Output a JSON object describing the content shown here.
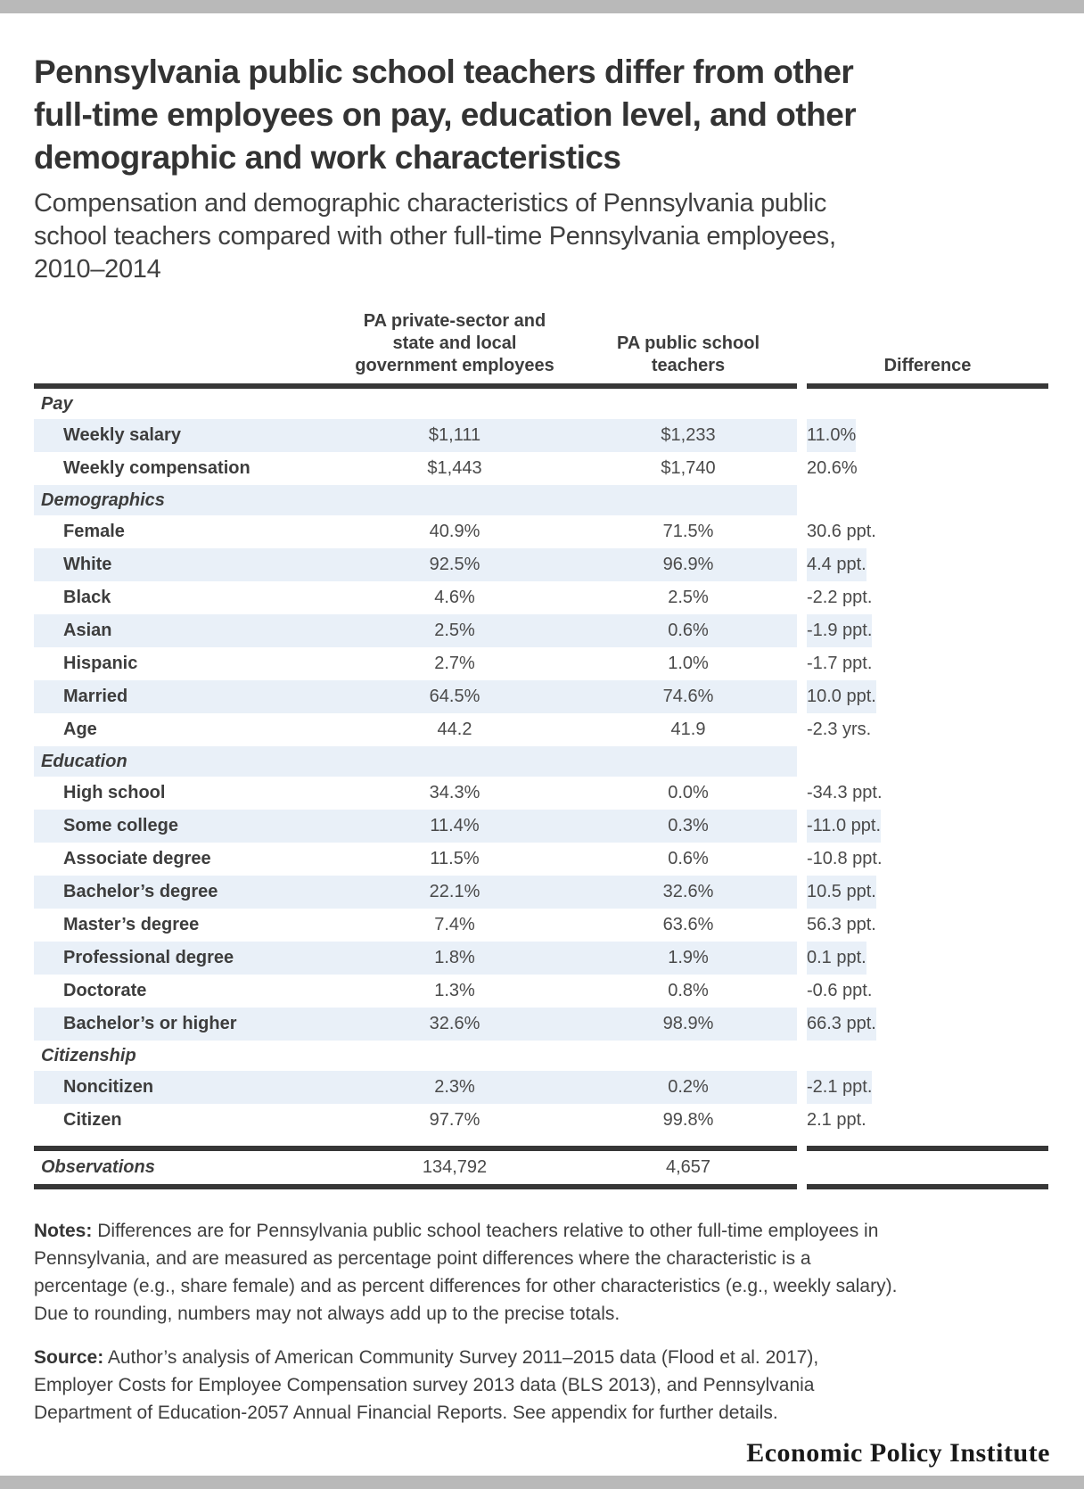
{
  "chart_data": {
    "type": "table",
    "title": "Pennsylvania public school teachers differ from other\nfull-time employees on pay, education level, and other\ndemographic and work characteristics",
    "subtitle": "Compensation and demographic characteristics of Pennsylvania public\nschool teachers compared with other full-time Pennsylvania employees,\n2010–2014",
    "columns": {
      "col1": "PA private-sector and\nstate and local\ngovernment employees",
      "col2": "PA public school\nteachers",
      "diff": "Difference"
    },
    "rows": [
      {
        "type": "section",
        "label": "Pay",
        "shaded": false
      },
      {
        "type": "data",
        "label": "Weekly salary",
        "col1": "$1,111",
        "col2": "$1,233",
        "diff": "11.0%",
        "shaded": true
      },
      {
        "type": "data",
        "label": "Weekly compensation",
        "col1": "$1,443",
        "col2": "$1,740",
        "diff": "20.6%",
        "shaded": false
      },
      {
        "type": "section",
        "label": "Demographics",
        "shaded": true
      },
      {
        "type": "data",
        "label": "Female",
        "col1": "40.9%",
        "col2": "71.5%",
        "diff": "30.6 ppt.",
        "shaded": false
      },
      {
        "type": "data",
        "label": "White",
        "col1": "92.5%",
        "col2": "96.9%",
        "diff": "4.4 ppt.",
        "shaded": true
      },
      {
        "type": "data",
        "label": "Black",
        "col1": "4.6%",
        "col2": "2.5%",
        "diff": "-2.2 ppt.",
        "shaded": false
      },
      {
        "type": "data",
        "label": "Asian",
        "col1": "2.5%",
        "col2": "0.6%",
        "diff": "-1.9 ppt.",
        "shaded": true
      },
      {
        "type": "data",
        "label": "Hispanic",
        "col1": "2.7%",
        "col2": "1.0%",
        "diff": "-1.7 ppt.",
        "shaded": false
      },
      {
        "type": "data",
        "label": "Married",
        "col1": "64.5%",
        "col2": "74.6%",
        "diff": "10.0 ppt.",
        "shaded": true
      },
      {
        "type": "data",
        "label": "Age",
        "col1": "44.2",
        "col2": "41.9",
        "diff": "-2.3 yrs.",
        "shaded": false
      },
      {
        "type": "section",
        "label": "Education",
        "shaded": true
      },
      {
        "type": "data",
        "label": "High school",
        "col1": "34.3%",
        "col2": "0.0%",
        "diff": "-34.3 ppt.",
        "shaded": false
      },
      {
        "type": "data",
        "label": "Some college",
        "col1": "11.4%",
        "col2": "0.3%",
        "diff": "-11.0 ppt.",
        "shaded": true
      },
      {
        "type": "data",
        "label": "Associate degree",
        "col1": "11.5%",
        "col2": "0.6%",
        "diff": "-10.8 ppt.",
        "shaded": false
      },
      {
        "type": "data",
        "label": "Bachelor’s degree",
        "col1": "22.1%",
        "col2": "32.6%",
        "diff": "10.5 ppt.",
        "shaded": true
      },
      {
        "type": "data",
        "label": "Master’s degree",
        "col1": "7.4%",
        "col2": "63.6%",
        "diff": "56.3 ppt.",
        "shaded": false
      },
      {
        "type": "data",
        "label": "Professional degree",
        "col1": "1.8%",
        "col2": "1.9%",
        "diff": "0.1 ppt.",
        "shaded": true
      },
      {
        "type": "data",
        "label": "Doctorate",
        "col1": "1.3%",
        "col2": "0.8%",
        "diff": "-0.6 ppt.",
        "shaded": false
      },
      {
        "type": "data",
        "label": "Bachelor’s or higher",
        "col1": "32.6%",
        "col2": "98.9%",
        "diff": "66.3 ppt.",
        "shaded": true
      },
      {
        "type": "section",
        "label": "Citizenship",
        "shaded": false
      },
      {
        "type": "data",
        "label": "Noncitizen",
        "col1": "2.3%",
        "col2": "0.2%",
        "diff": "-2.1 ppt.",
        "shaded": true
      },
      {
        "type": "data",
        "label": "Citizen",
        "col1": "97.7%",
        "col2": "99.8%",
        "diff": "2.1 ppt.",
        "shaded": false
      }
    ],
    "observations": {
      "label": "Observations",
      "col1": "134,792",
      "col2": "4,657",
      "diff": ""
    },
    "notes_label": "Notes:",
    "notes": "Differences are for Pennsylvania public school teachers relative to other full-time employees in\nPennsylvania, and are measured as percentage point differences where the characteristic is a\npercentage (e.g., share female) and as percent differences for other characteristics (e.g., weekly salary).\nDue to rounding, numbers may not always add up to the precise totals.",
    "source_label": "Source:",
    "source": "Author’s analysis of American Community Survey 2011–2015 data (Flood et al. 2017),\nEmployer Costs for Employee Compensation survey 2013 data (BLS 2013), and Pennsylvania\nDepartment of Education-2057 Annual Financial Reports. See appendix for further details.",
    "branding": "Economic Policy Institute"
  },
  "colors": {
    "row_shade": "#e9f0f8",
    "rule_dark": "#373737",
    "page_bar_gray": "#b9b9b9"
  }
}
